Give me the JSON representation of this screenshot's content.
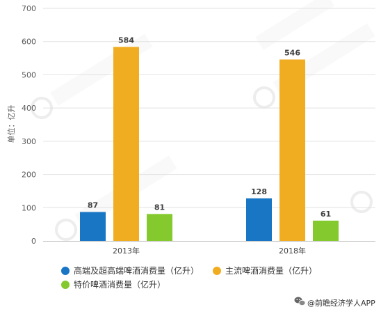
{
  "chart_data": {
    "type": "bar",
    "categories": [
      "2013年",
      "2018年"
    ],
    "series": [
      {
        "name": "高端及超高端啤酒消费量（亿升）",
        "values": [
          87,
          128
        ],
        "color": "#1976c5"
      },
      {
        "name": "主流啤酒消费量（亿升）",
        "values": [
          584,
          546
        ],
        "color": "#f0ad21"
      },
      {
        "name": "特价啤酒消费量（亿升）",
        "values": [
          81,
          61
        ],
        "color": "#84c92d"
      }
    ],
    "ylabel": "单位：亿升",
    "ylim": [
      0,
      700
    ],
    "yticks": [
      0,
      100,
      200,
      300,
      400,
      500,
      600,
      700
    ],
    "grid": true,
    "legend_position": "bottom"
  },
  "footer": {
    "source_icon": "wechat-icon",
    "source_text": "@前瞻经济学人APP"
  }
}
